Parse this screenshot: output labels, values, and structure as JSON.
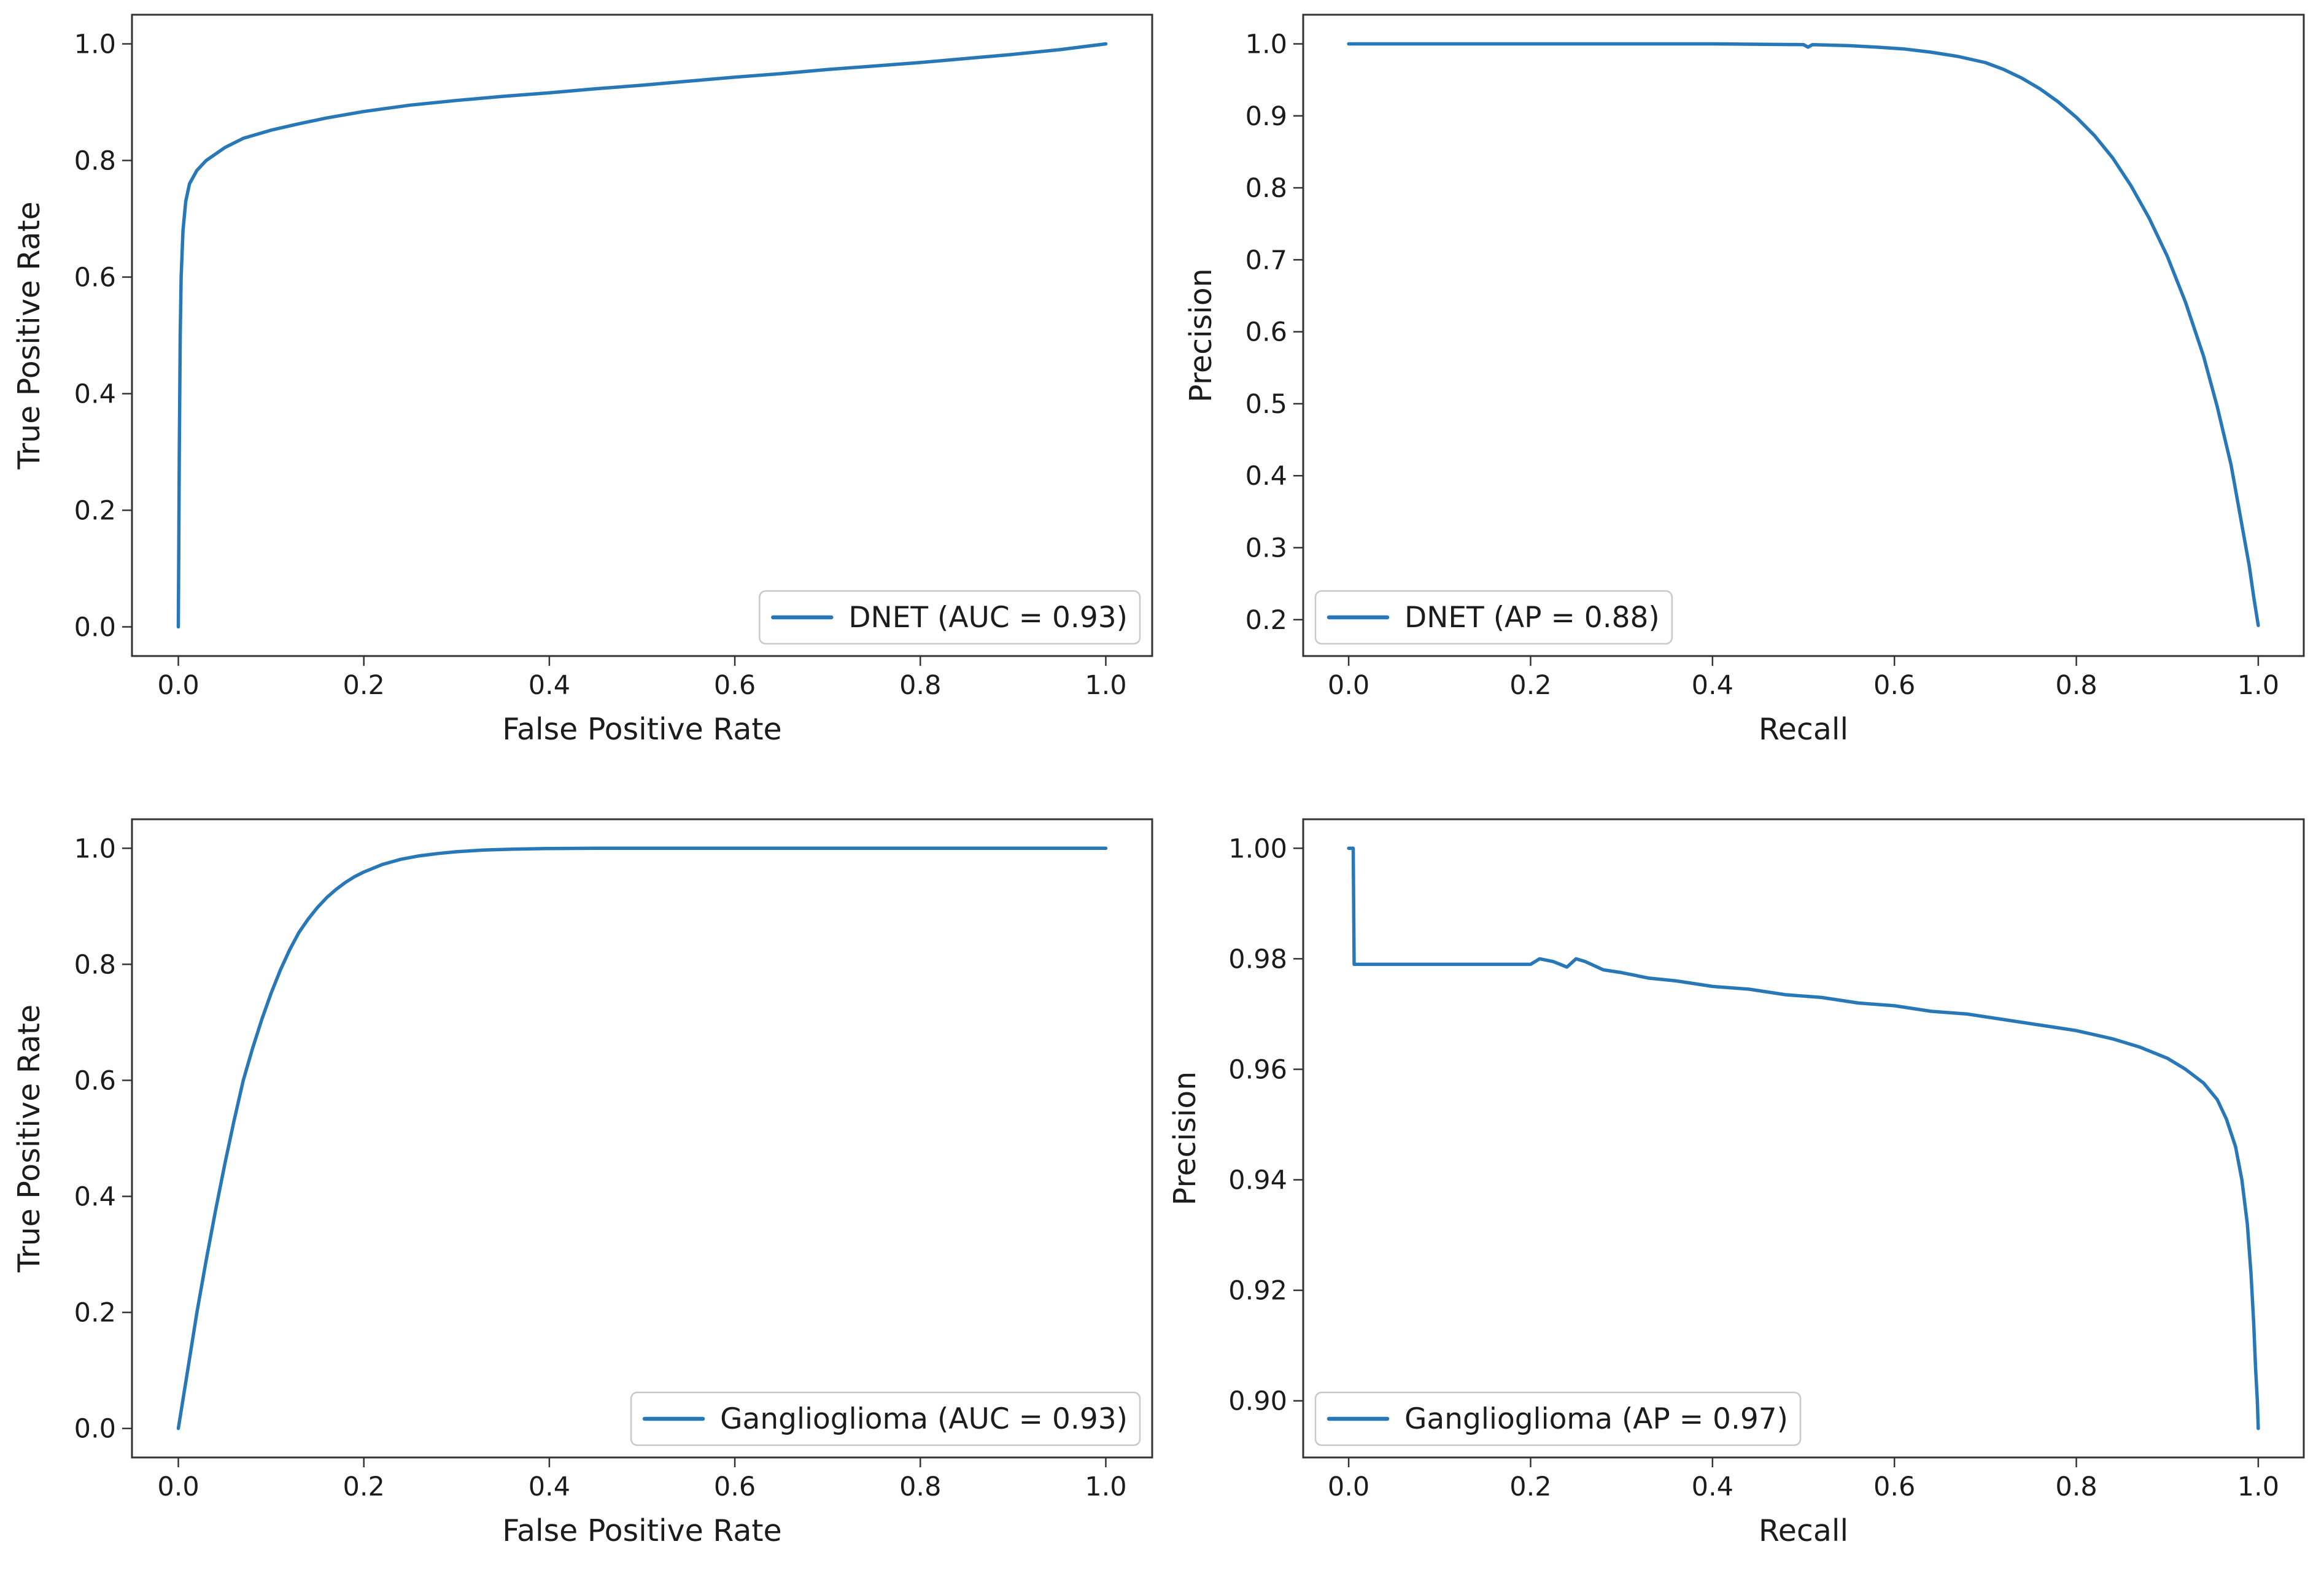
{
  "figure": {
    "background": "#ffffff",
    "line_color": "#2878b8",
    "spine_color": "#333333",
    "text_color": "#1c1c1c",
    "legend_border_color": "#c9c9c9"
  },
  "chart_data": [
    {
      "id": "roc-dnet",
      "type": "line",
      "xlabel": "False Positive Rate",
      "ylabel": "True Positive Rate",
      "xlim": [
        -0.05,
        1.05
      ],
      "ylim": [
        -0.05,
        1.05
      ],
      "xticks": [
        0.0,
        0.2,
        0.4,
        0.6,
        0.8,
        1.0
      ],
      "xtick_labels": [
        "0.0",
        "0.2",
        "0.4",
        "0.6",
        "0.8",
        "1.0"
      ],
      "yticks": [
        0.0,
        0.2,
        0.4,
        0.6,
        0.8,
        1.0
      ],
      "ytick_labels": [
        "0.0",
        "0.2",
        "0.4",
        "0.6",
        "0.8",
        "1.0"
      ],
      "legend": {
        "label": "DNET (AUC = 0.93)",
        "loc": "lower right"
      },
      "metric": {
        "name": "AUC",
        "value": 0.93
      },
      "series": [
        {
          "name": "DNET",
          "points": [
            [
              0,
              0
            ],
            [
              0.001,
              0.3
            ],
            [
              0.002,
              0.5
            ],
            [
              0.003,
              0.6
            ],
            [
              0.005,
              0.68
            ],
            [
              0.008,
              0.73
            ],
            [
              0.012,
              0.76
            ],
            [
              0.02,
              0.783
            ],
            [
              0.03,
              0.8
            ],
            [
              0.05,
              0.822
            ],
            [
              0.07,
              0.838
            ],
            [
              0.1,
              0.852
            ],
            [
              0.13,
              0.863
            ],
            [
              0.16,
              0.873
            ],
            [
              0.2,
              0.884
            ],
            [
              0.25,
              0.895
            ],
            [
              0.3,
              0.903
            ],
            [
              0.35,
              0.91
            ],
            [
              0.4,
              0.916
            ],
            [
              0.45,
              0.923
            ],
            [
              0.5,
              0.929
            ],
            [
              0.55,
              0.936
            ],
            [
              0.6,
              0.943
            ],
            [
              0.65,
              0.949
            ],
            [
              0.7,
              0.956
            ],
            [
              0.75,
              0.962
            ],
            [
              0.8,
              0.968
            ],
            [
              0.85,
              0.975
            ],
            [
              0.9,
              0.982
            ],
            [
              0.95,
              0.99
            ],
            [
              1,
              1
            ]
          ]
        }
      ]
    },
    {
      "id": "pr-dnet",
      "type": "line",
      "xlabel": "Recall",
      "ylabel": "Precision",
      "xlim": [
        -0.05,
        1.05
      ],
      "ylim": [
        0.1495,
        1.0405
      ],
      "xticks": [
        0.0,
        0.2,
        0.4,
        0.6,
        0.8,
        1.0
      ],
      "xtick_labels": [
        "0.0",
        "0.2",
        "0.4",
        "0.6",
        "0.8",
        "1.0"
      ],
      "yticks": [
        1.0,
        0.9,
        0.8,
        0.7,
        0.6,
        0.5,
        0.4,
        0.3,
        0.2
      ],
      "ytick_labels": [
        "1.0",
        "0.9",
        "0.8",
        "0.7",
        "0.6",
        "0.5",
        "0.4",
        "0.3",
        "0.2"
      ],
      "legend": {
        "label": "DNET (AP = 0.88)",
        "loc": "lower left"
      },
      "metric": {
        "name": "AP",
        "value": 0.88
      },
      "series": [
        {
          "name": "DNET",
          "points": [
            [
              0,
              1
            ],
            [
              0.1,
              1
            ],
            [
              0.2,
              1
            ],
            [
              0.3,
              1
            ],
            [
              0.4,
              1
            ],
            [
              0.45,
              0.9995
            ],
            [
              0.5,
              0.999
            ],
            [
              0.505,
              0.9955
            ],
            [
              0.51,
              0.999
            ],
            [
              0.55,
              0.9975
            ],
            [
              0.58,
              0.9955
            ],
            [
              0.61,
              0.993
            ],
            [
              0.64,
              0.9885
            ],
            [
              0.67,
              0.9825
            ],
            [
              0.7,
              0.974
            ],
            [
              0.72,
              0.9645
            ],
            [
              0.74,
              0.9525
            ],
            [
              0.76,
              0.9375
            ],
            [
              0.78,
              0.9195
            ],
            [
              0.8,
              0.898
            ],
            [
              0.82,
              0.8725
            ],
            [
              0.84,
              0.8415
            ],
            [
              0.86,
              0.803
            ],
            [
              0.88,
              0.758
            ],
            [
              0.9,
              0.705
            ],
            [
              0.92,
              0.641
            ],
            [
              0.94,
              0.5655
            ],
            [
              0.955,
              0.4955
            ],
            [
              0.97,
              0.4155
            ],
            [
              0.98,
              0.3455
            ],
            [
              0.99,
              0.2755
            ],
            [
              0.995,
              0.2315
            ],
            [
              1,
              0.192
            ]
          ]
        }
      ]
    },
    {
      "id": "roc-ganglioglioma",
      "type": "line",
      "xlabel": "False Positive Rate",
      "ylabel": "True Positive Rate",
      "xlim": [
        -0.05,
        1.05
      ],
      "ylim": [
        -0.05,
        1.05
      ],
      "xticks": [
        0.0,
        0.2,
        0.4,
        0.6,
        0.8,
        1.0
      ],
      "xtick_labels": [
        "0.0",
        "0.2",
        "0.4",
        "0.6",
        "0.8",
        "1.0"
      ],
      "yticks": [
        0.0,
        0.2,
        0.4,
        0.6,
        0.8,
        1.0
      ],
      "ytick_labels": [
        "0.0",
        "0.2",
        "0.4",
        "0.6",
        "0.8",
        "1.0"
      ],
      "legend": {
        "label": "Ganglioglioma (AUC = 0.93)",
        "loc": "lower right"
      },
      "metric": {
        "name": "AUC",
        "value": 0.93
      },
      "series": [
        {
          "name": "Ganglioglioma",
          "points": [
            [
              0,
              0
            ],
            [
              0.01,
              0.1
            ],
            [
              0.02,
              0.2
            ],
            [
              0.03,
              0.29
            ],
            [
              0.04,
              0.375
            ],
            [
              0.05,
              0.455
            ],
            [
              0.06,
              0.53
            ],
            [
              0.07,
              0.6
            ],
            [
              0.08,
              0.655
            ],
            [
              0.09,
              0.705
            ],
            [
              0.1,
              0.75
            ],
            [
              0.11,
              0.79
            ],
            [
              0.12,
              0.825
            ],
            [
              0.13,
              0.855
            ],
            [
              0.14,
              0.878
            ],
            [
              0.15,
              0.898
            ],
            [
              0.16,
              0.915
            ],
            [
              0.17,
              0.929
            ],
            [
              0.18,
              0.941
            ],
            [
              0.19,
              0.951
            ],
            [
              0.2,
              0.959
            ],
            [
              0.22,
              0.972
            ],
            [
              0.24,
              0.981
            ],
            [
              0.26,
              0.987
            ],
            [
              0.28,
              0.991
            ],
            [
              0.3,
              0.994
            ],
            [
              0.33,
              0.997
            ],
            [
              0.36,
              0.9985
            ],
            [
              0.4,
              0.9995
            ],
            [
              0.45,
              1
            ],
            [
              0.6,
              1
            ],
            [
              0.8,
              1
            ],
            [
              1,
              1
            ]
          ]
        }
      ]
    },
    {
      "id": "pr-ganglioglioma",
      "type": "line",
      "xlabel": "Recall",
      "ylabel": "Precision",
      "xlim": [
        -0.05,
        1.05
      ],
      "ylim": [
        0.88975,
        1.00525
      ],
      "xticks": [
        0.0,
        0.2,
        0.4,
        0.6,
        0.8,
        1.0
      ],
      "xtick_labels": [
        "0.0",
        "0.2",
        "0.4",
        "0.6",
        "0.8",
        "1.0"
      ],
      "yticks": [
        1.0,
        0.98,
        0.96,
        0.94,
        0.92,
        0.9
      ],
      "ytick_labels": [
        "1.00",
        "0.98",
        "0.96",
        "0.94",
        "0.92",
        "0.90"
      ],
      "legend": {
        "label": "Ganglioglioma (AP = 0.97)",
        "loc": "lower left"
      },
      "metric": {
        "name": "AP",
        "value": 0.97
      },
      "series": [
        {
          "name": "Ganglioglioma",
          "points": [
            [
              0,
              1
            ],
            [
              0.005,
              1
            ],
            [
              0.006,
              0.979
            ],
            [
              0.05,
              0.979
            ],
            [
              0.1,
              0.979
            ],
            [
              0.15,
              0.979
            ],
            [
              0.2,
              0.979
            ],
            [
              0.21,
              0.98
            ],
            [
              0.225,
              0.9795
            ],
            [
              0.24,
              0.9785
            ],
            [
              0.25,
              0.98
            ],
            [
              0.26,
              0.9795
            ],
            [
              0.28,
              0.978
            ],
            [
              0.3,
              0.9775
            ],
            [
              0.33,
              0.9765
            ],
            [
              0.36,
              0.976
            ],
            [
              0.4,
              0.975
            ],
            [
              0.44,
              0.9745
            ],
            [
              0.48,
              0.9735
            ],
            [
              0.52,
              0.973
            ],
            [
              0.56,
              0.972
            ],
            [
              0.6,
              0.9715
            ],
            [
              0.64,
              0.9705
            ],
            [
              0.68,
              0.97
            ],
            [
              0.72,
              0.969
            ],
            [
              0.76,
              0.968
            ],
            [
              0.8,
              0.967
            ],
            [
              0.84,
              0.9655
            ],
            [
              0.87,
              0.964
            ],
            [
              0.9,
              0.962
            ],
            [
              0.92,
              0.96
            ],
            [
              0.94,
              0.9575
            ],
            [
              0.955,
              0.9545
            ],
            [
              0.965,
              0.951
            ],
            [
              0.975,
              0.946
            ],
            [
              0.982,
              0.94
            ],
            [
              0.988,
              0.932
            ],
            [
              0.992,
              0.923
            ],
            [
              0.995,
              0.914
            ],
            [
              0.997,
              0.906
            ],
            [
              0.999,
              0.9
            ],
            [
              1,
              0.895
            ]
          ]
        }
      ]
    }
  ]
}
